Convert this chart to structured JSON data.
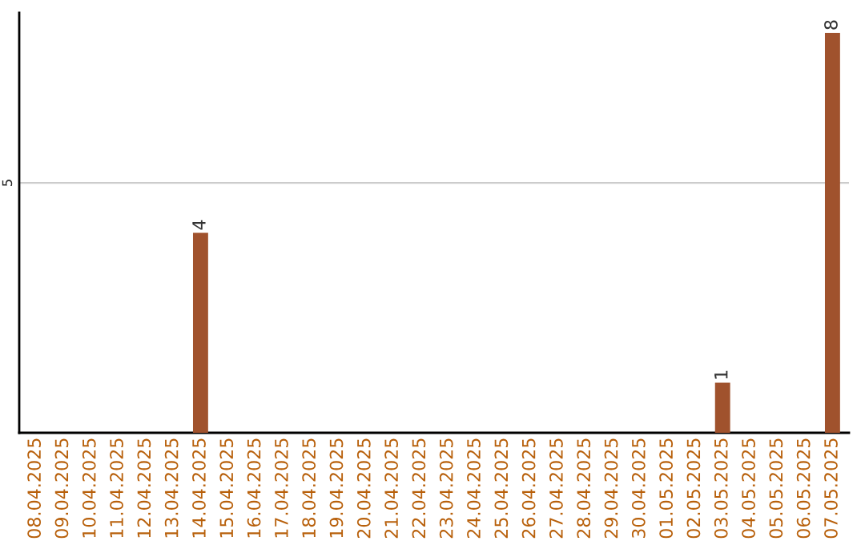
{
  "chart_data": {
    "type": "bar",
    "categories": [
      "08.04.2025",
      "09.04.2025",
      "10.04.2025",
      "11.04.2025",
      "12.04.2025",
      "13.04.2025",
      "14.04.2025",
      "15.04.2025",
      "16.04.2025",
      "17.04.2025",
      "18.04.2025",
      "19.04.2025",
      "20.04.2025",
      "21.04.2025",
      "22.04.2025",
      "23.04.2025",
      "24.04.2025",
      "25.04.2025",
      "26.04.2025",
      "27.04.2025",
      "28.04.2025",
      "29.04.2025",
      "30.04.2025",
      "01.05.2025",
      "02.05.2025",
      "03.05.2025",
      "04.05.2025",
      "05.05.2025",
      "06.05.2025",
      "07.05.2025"
    ],
    "values": [
      0,
      0,
      0,
      0,
      0,
      0,
      4,
      0,
      0,
      0,
      0,
      0,
      0,
      0,
      0,
      0,
      0,
      0,
      0,
      0,
      0,
      0,
      0,
      0,
      0,
      1,
      0,
      0,
      0,
      8
    ],
    "value_labels": [
      null,
      null,
      null,
      null,
      null,
      null,
      "4",
      null,
      null,
      null,
      null,
      null,
      null,
      null,
      null,
      null,
      null,
      null,
      null,
      null,
      null,
      null,
      null,
      null,
      null,
      "1",
      null,
      null,
      null,
      "8"
    ],
    "color": "#a0522d",
    "ylim": [
      0,
      8.4
    ],
    "yticks": [
      5
    ],
    "grid": "y",
    "legend": false
  }
}
